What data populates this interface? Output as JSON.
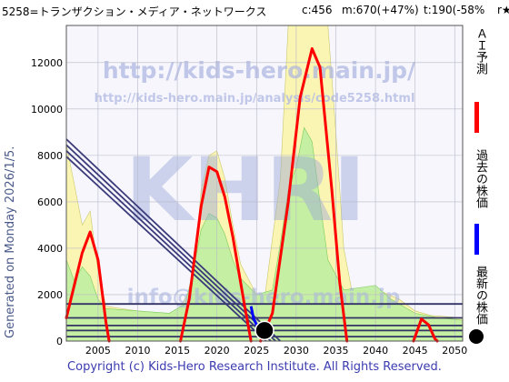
{
  "header": {
    "title": "5258=トランザクション・メディア・ネットワークス",
    "current": "c:456",
    "max": "m:670(+47%)",
    "target": "t:190(-58%",
    "star": "r★"
  },
  "generated_label": "Generated on Monday 2026/1/5.",
  "footer": "Copyright (c) Kids-Hero Research Institute. All Rights Reserved.",
  "watermarks": {
    "url": "http://kids-hero.main.jp/",
    "analysis_url": "http://kids-hero.main.jp/analysis/code5258.html",
    "logo": "KHRI",
    "email": "info@kids-hero.main.jp"
  },
  "legend": [
    {
      "label": "ＡＩ予測",
      "color": "#ff0000"
    },
    {
      "label": "過去の株価",
      "color": "#0000ff"
    },
    {
      "label": "最新の株価",
      "color": "#000000"
    }
  ],
  "chart_data": {
    "type": "line",
    "xlim": [
      2001,
      2051
    ],
    "ylim": [
      0,
      13600
    ],
    "x_ticks": [
      2005,
      2010,
      2015,
      2020,
      2025,
      2030,
      2035,
      2040,
      2045,
      2050
    ],
    "y_ticks": [
      0,
      2000,
      4000,
      6000,
      8000,
      10000,
      12000
    ],
    "grid": true,
    "series": [
      {
        "name": "ＡＩ予測",
        "color": "#ff0000",
        "segments": [
          [
            [
              2001,
              1000
            ],
            [
              2002,
              2400
            ],
            [
              2003,
              3800
            ],
            [
              2004,
              4700
            ],
            [
              2005,
              3500
            ],
            [
              2006,
              800
            ],
            [
              2006.4,
              0
            ]
          ],
          [
            [
              2015.4,
              0
            ],
            [
              2016.5,
              1800
            ],
            [
              2018,
              5800
            ],
            [
              2019,
              7500
            ],
            [
              2020,
              7300
            ],
            [
              2021,
              6200
            ],
            [
              2022,
              4500
            ],
            [
              2023.5,
              1500
            ],
            [
              2024.3,
              0
            ]
          ],
          [
            [
              2025.5,
              0
            ],
            [
              2027,
              1200
            ],
            [
              2029,
              6000
            ],
            [
              2030.5,
              10500
            ],
            [
              2032,
              12600
            ],
            [
              2033,
              11800
            ],
            [
              2034.5,
              6500
            ],
            [
              2035.5,
              2500
            ],
            [
              2036.4,
              0
            ]
          ],
          [
            [
              2044.8,
              0
            ],
            [
              2045.8,
              950
            ],
            [
              2046.7,
              700
            ],
            [
              2047.5,
              100
            ],
            [
              2047.8,
              0
            ]
          ]
        ]
      },
      {
        "name": "過去の株価",
        "color": "#0000ff",
        "points": [
          [
            2024.3,
            1500
          ],
          [
            2024.6,
            1000
          ],
          [
            2025,
            700
          ],
          [
            2025.5,
            500
          ],
          [
            2026,
            456
          ]
        ]
      },
      {
        "name": "最新の株価",
        "color": "#000000",
        "points": [
          [
            2026,
            456
          ]
        ]
      }
    ],
    "trend_lines": [
      [
        [
          2001,
          8700
        ],
        [
          2028.0,
          0
        ]
      ],
      [
        [
          2001,
          8450
        ],
        [
          2027.4,
          0
        ]
      ],
      [
        [
          2001,
          8200
        ],
        [
          2026.8,
          0
        ]
      ],
      [
        [
          2001,
          7950
        ],
        [
          2026.2,
          0
        ]
      ]
    ],
    "horizontal_levels": [
      1600,
      1000,
      670,
      456,
      190
    ],
    "envelopes": {
      "yellow": [
        [
          2001,
          8500
        ],
        [
          2003,
          5000
        ],
        [
          2004,
          5600
        ],
        [
          2005,
          3000
        ],
        [
          2006,
          1500
        ],
        [
          2012,
          1200
        ],
        [
          2015,
          1200
        ],
        [
          2017,
          2500
        ],
        [
          2018,
          6500
        ],
        [
          2019,
          8000
        ],
        [
          2020,
          8200
        ],
        [
          2021,
          7000
        ],
        [
          2022,
          5000
        ],
        [
          2023,
          3300
        ],
        [
          2025,
          2000
        ],
        [
          2026,
          1800
        ],
        [
          2028,
          7000
        ],
        [
          2029,
          13600
        ],
        [
          2031,
          13600
        ],
        [
          2032,
          13600
        ],
        [
          2034,
          13600
        ],
        [
          2035,
          9000
        ],
        [
          2036,
          4000
        ],
        [
          2037,
          2200
        ],
        [
          2041,
          2100
        ],
        [
          2043,
          1800
        ],
        [
          2045,
          1300
        ],
        [
          2047,
          1100
        ],
        [
          2051,
          1000
        ]
      ],
      "green": [
        [
          2001,
          3500
        ],
        [
          2002,
          2600
        ],
        [
          2003,
          3200
        ],
        [
          2004,
          2800
        ],
        [
          2005,
          1800
        ],
        [
          2006,
          1400
        ],
        [
          2010,
          1300
        ],
        [
          2014,
          1200
        ],
        [
          2016,
          1600
        ],
        [
          2017,
          3000
        ],
        [
          2018,
          4800
        ],
        [
          2019,
          5500
        ],
        [
          2020,
          5300
        ],
        [
          2021,
          4600
        ],
        [
          2022,
          3500
        ],
        [
          2023,
          2700
        ],
        [
          2025,
          2000
        ],
        [
          2027,
          2200
        ],
        [
          2028,
          4200
        ],
        [
          2029,
          6500
        ],
        [
          2030,
          7500
        ],
        [
          2031,
          9200
        ],
        [
          2032,
          8600
        ],
        [
          2033,
          6000
        ],
        [
          2034,
          3500
        ],
        [
          2036,
          2200
        ],
        [
          2040,
          2400
        ],
        [
          2042,
          1800
        ],
        [
          2045,
          1200
        ],
        [
          2048,
          1000
        ],
        [
          2051,
          900
        ]
      ]
    }
  }
}
